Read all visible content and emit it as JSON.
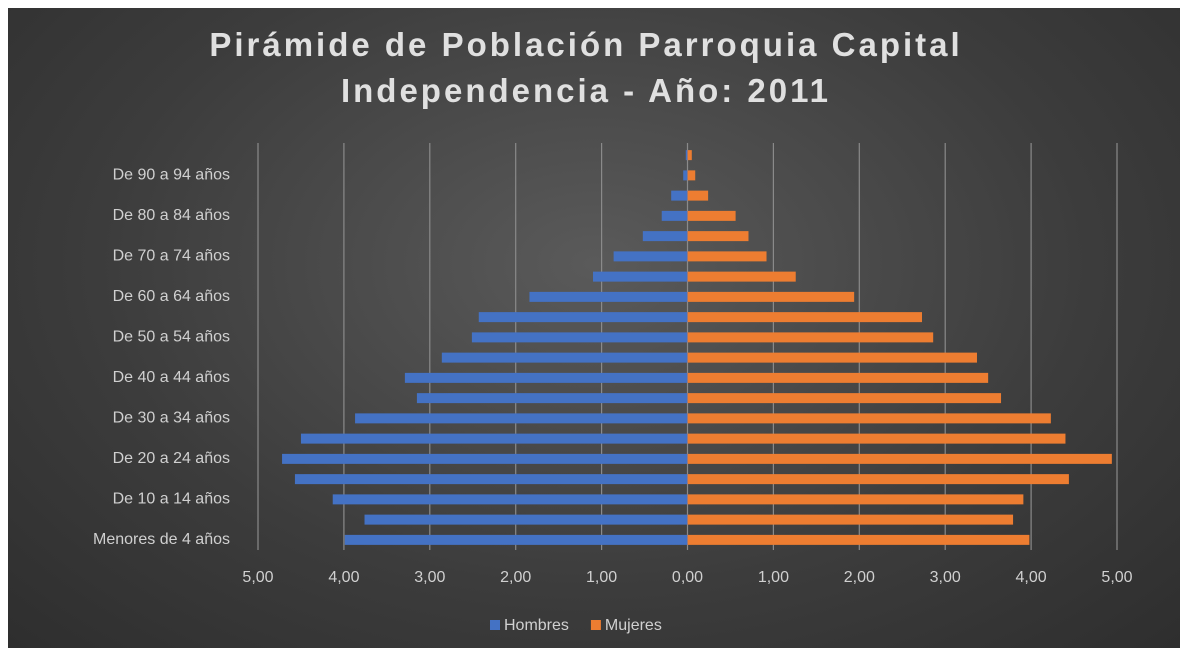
{
  "chart_data": {
    "type": "bar",
    "orientation": "horizontal",
    "title": "Pirámide de Población Parroquia Capital Independencia - Año: 2011",
    "categories": [
      "Menores de 4 años",
      null,
      "De 10 a 14 años",
      null,
      "De 20 a 24 años",
      null,
      "De 30 a 34 años",
      null,
      "De 40 a 44 años",
      null,
      "De 50 a 54 años",
      null,
      "De 60 a 64 años",
      null,
      "De 70 a 74 años",
      null,
      "De 80 a 84 años",
      null,
      "De 90 a 94 años",
      null
    ],
    "series": [
      {
        "name": "Hombres",
        "color": "#4472c4",
        "values": [
          -3.99,
          -3.76,
          -4.13,
          -4.57,
          -4.72,
          -4.5,
          -3.87,
          -3.15,
          -3.29,
          -2.86,
          -2.51,
          -2.43,
          -1.84,
          -1.1,
          -0.86,
          -0.52,
          -0.3,
          -0.19,
          -0.05,
          -0.02
        ]
      },
      {
        "name": "Mujeres",
        "color": "#ed7d31",
        "values": [
          3.98,
          3.79,
          3.91,
          4.44,
          4.94,
          4.4,
          4.23,
          3.65,
          3.5,
          3.37,
          2.86,
          2.73,
          1.94,
          1.26,
          0.92,
          0.71,
          0.56,
          0.24,
          0.09,
          0.05
        ]
      }
    ],
    "xlim": [
      -5,
      5
    ],
    "xticks": [
      {
        "value": -5,
        "label": "5,00"
      },
      {
        "value": -4,
        "label": "4,00"
      },
      {
        "value": -3,
        "label": "3,00"
      },
      {
        "value": -2,
        "label": "2,00"
      },
      {
        "value": -1,
        "label": "1,00"
      },
      {
        "value": 0,
        "label": "0,00"
      },
      {
        "value": 1,
        "label": "1,00"
      },
      {
        "value": 2,
        "label": "2,00"
      },
      {
        "value": 3,
        "label": "3,00"
      },
      {
        "value": 4,
        "label": "4,00"
      },
      {
        "value": 5,
        "label": "5,00"
      }
    ],
    "grid": true,
    "legend": "bottom"
  }
}
